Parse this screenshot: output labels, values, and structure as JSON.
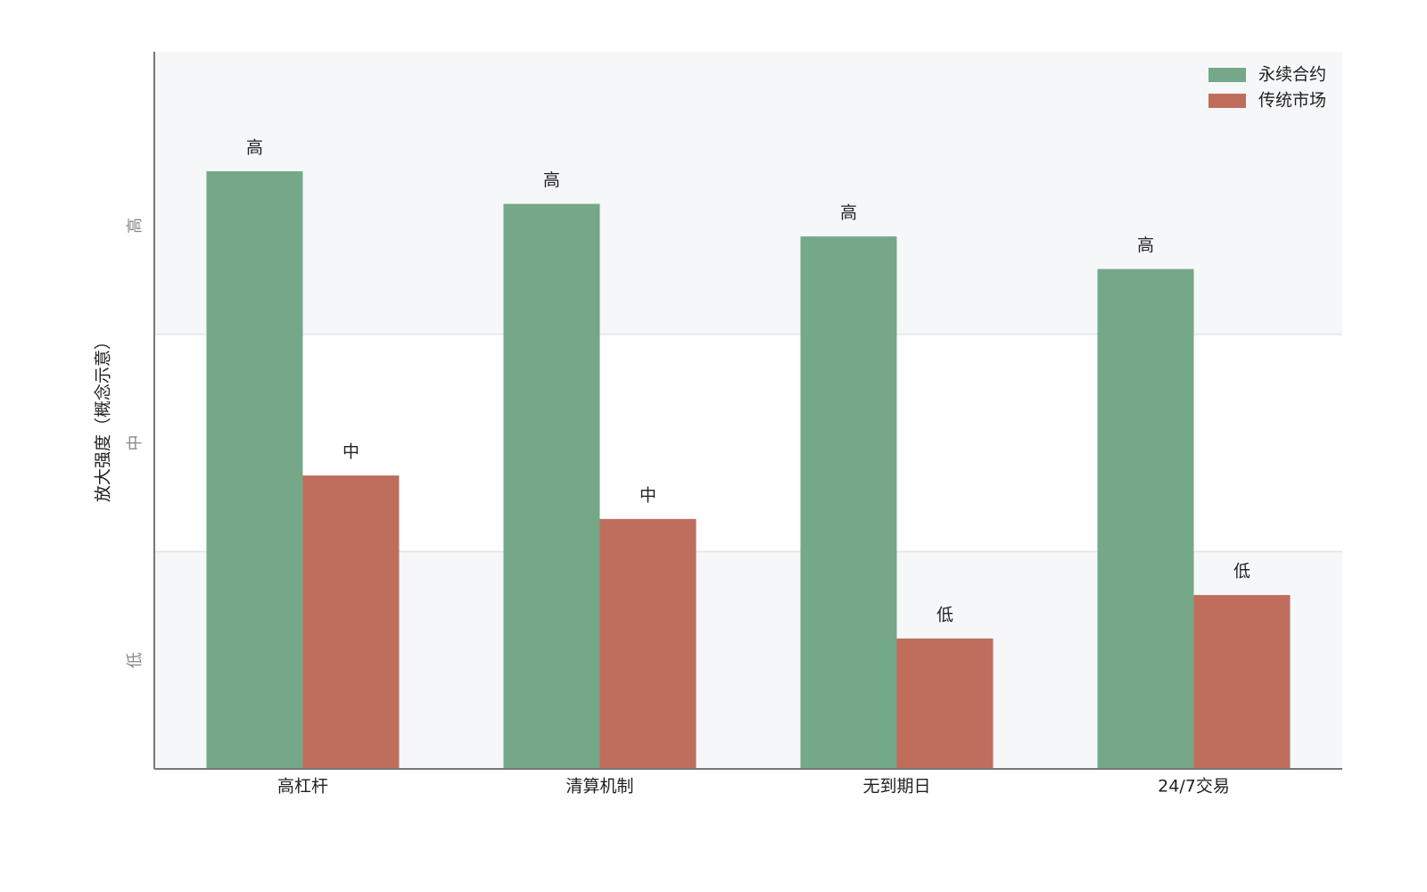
{
  "chart_data": {
    "type": "bar",
    "y_label": "放大强度（概念示意）",
    "categories": [
      "高杠杆",
      "清算机制",
      "无到期日",
      "24/7交易"
    ],
    "series": [
      {
        "name": "永续合约",
        "color": "#74a888",
        "values": [
          3.25,
          3.1,
          2.95,
          2.8
        ],
        "value_labels": [
          "高",
          "高",
          "高",
          "高"
        ]
      },
      {
        "name": "传统市场",
        "color": "#bf6e5c",
        "values": [
          1.85,
          1.65,
          1.1,
          1.3
        ],
        "value_labels": [
          "中",
          "中",
          "低",
          "低"
        ]
      }
    ],
    "ylim": [
      0.5,
      3.8
    ],
    "yticks": [
      {
        "value": 1,
        "label": "低"
      },
      {
        "value": 2,
        "label": "中"
      },
      {
        "value": 3,
        "label": "高"
      }
    ],
    "bands": [
      [
        0.5,
        1.5
      ],
      [
        2.5,
        3.8
      ]
    ],
    "band_color": "#f6f7f9",
    "legend": "upper right"
  }
}
